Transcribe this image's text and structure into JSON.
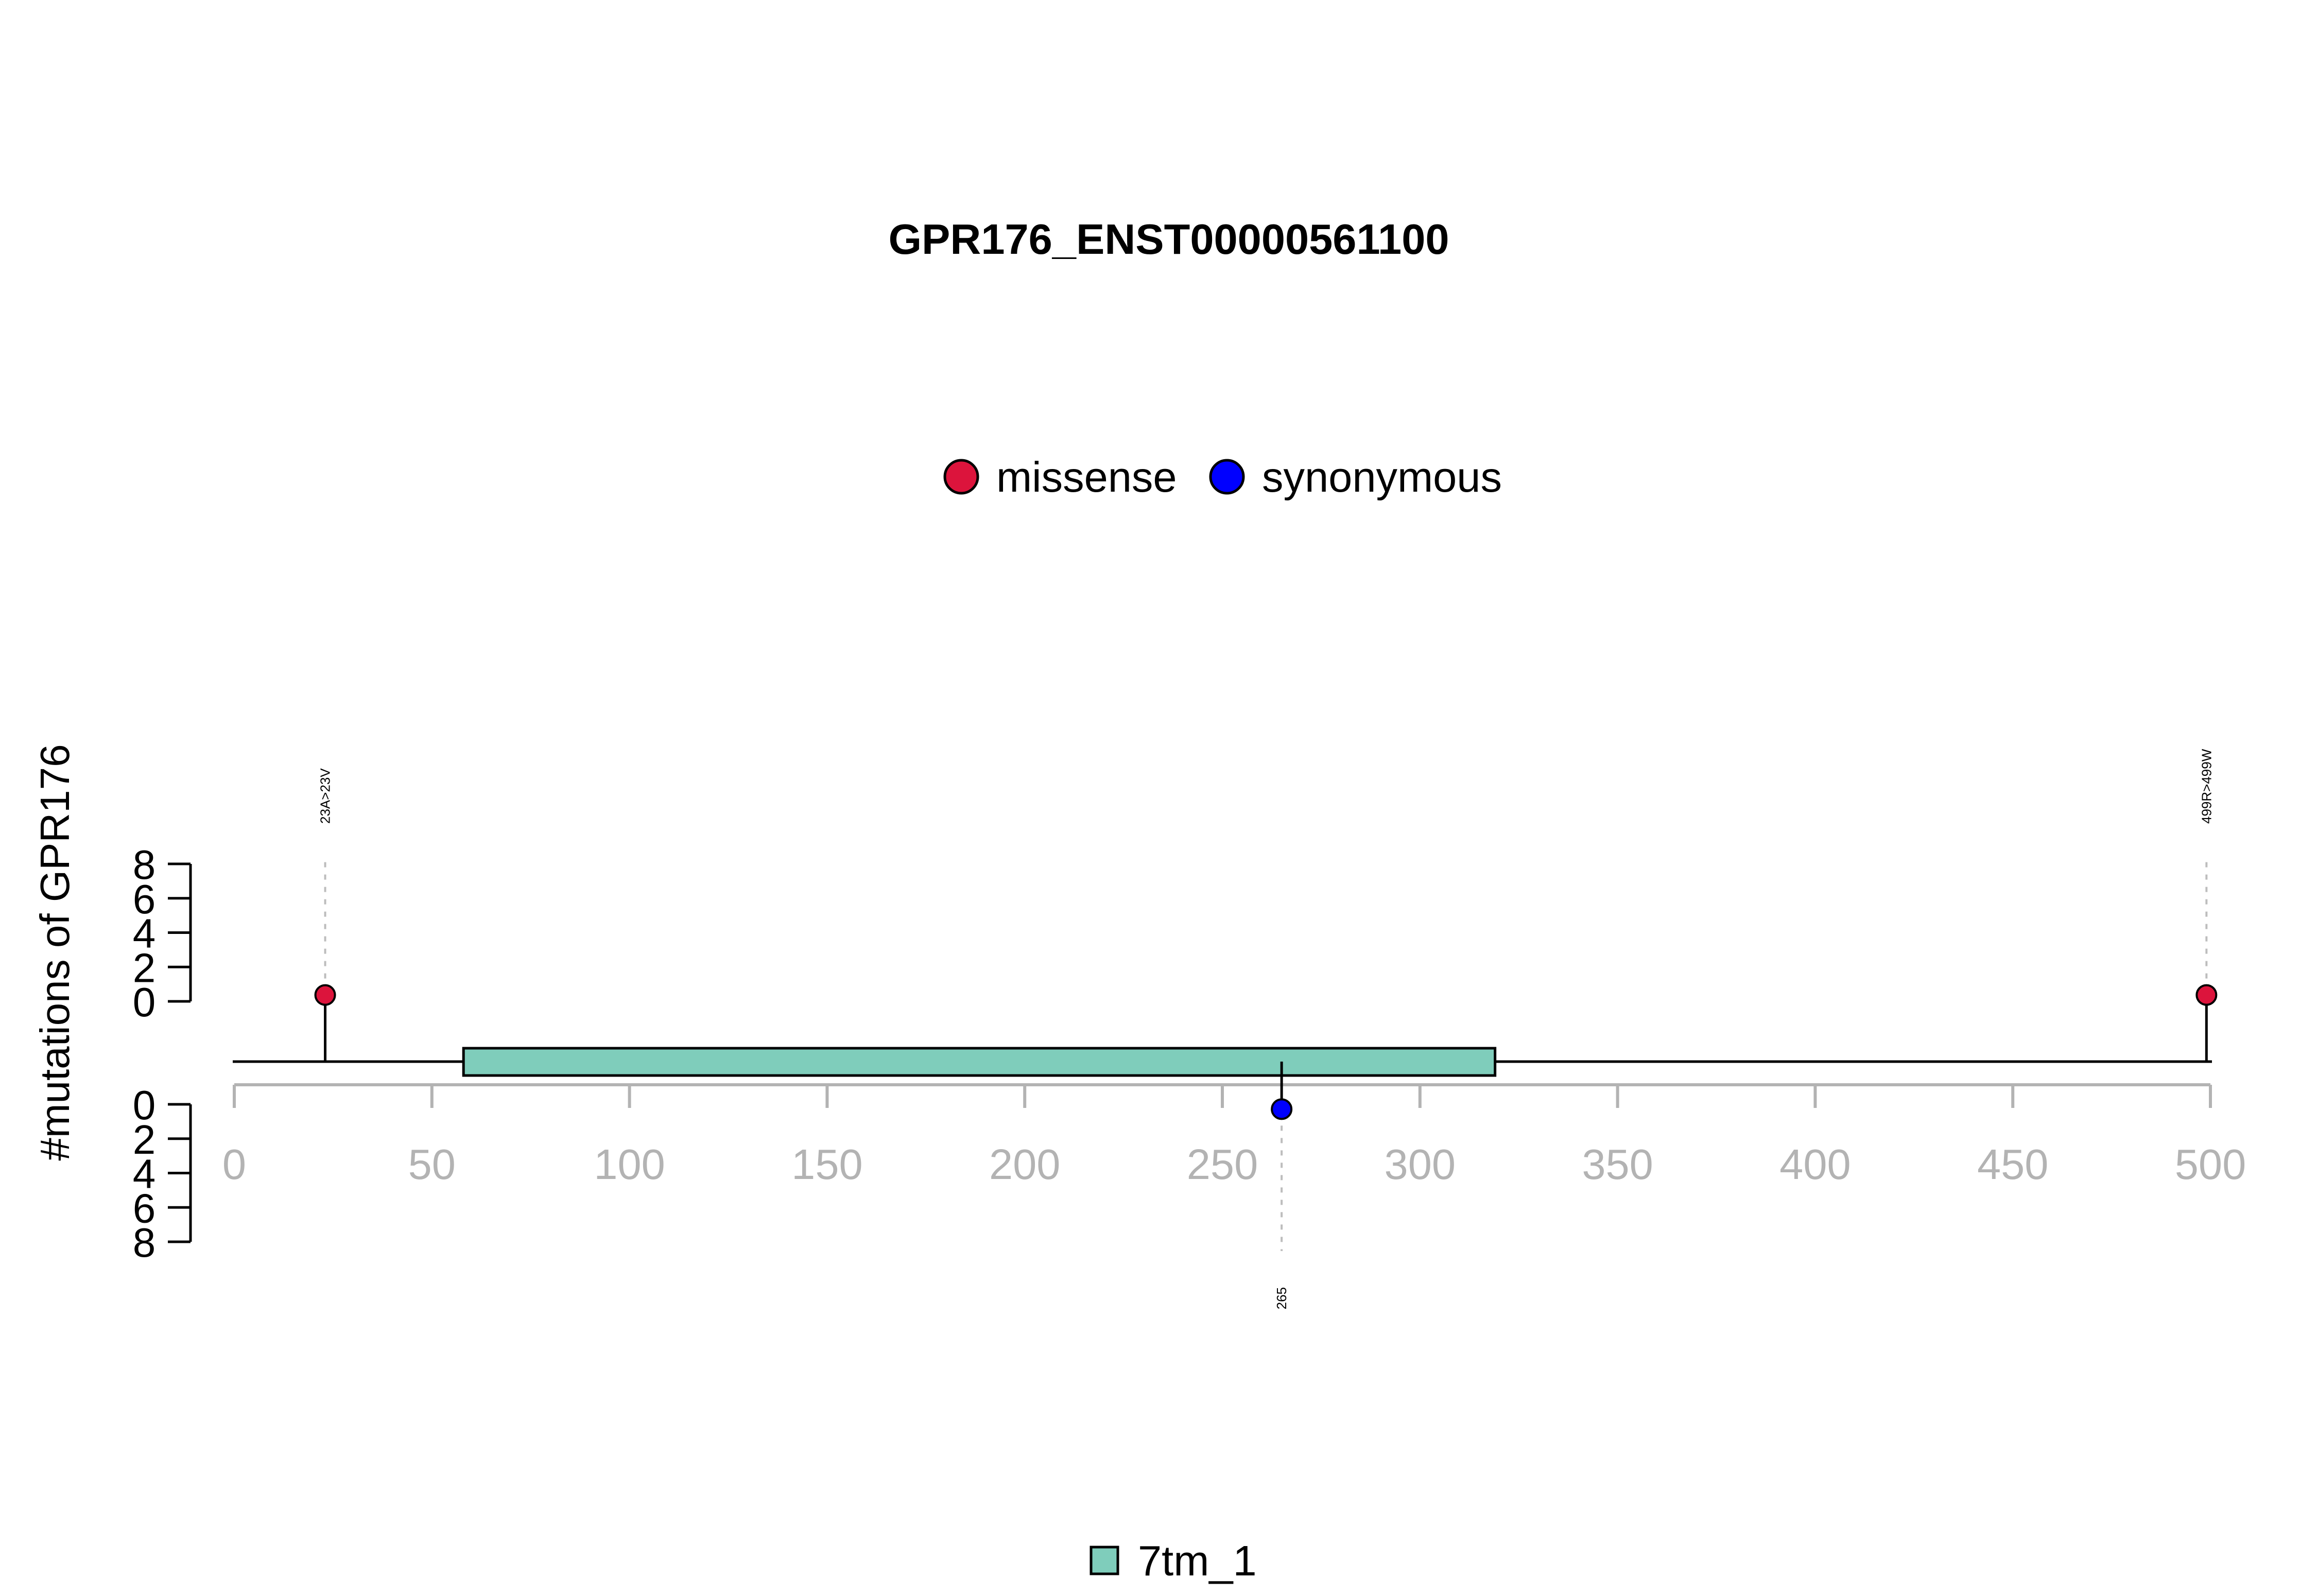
{
  "chart_data": {
    "type": "lollipop",
    "title": "GPR176_ENST00000561100",
    "ylabel": "#mutations of GPR176",
    "protein_length": 500,
    "xlim": [
      0,
      500
    ],
    "x_ticks": [
      "0",
      "50",
      "100",
      "150",
      "200",
      "250",
      "300",
      "350",
      "400",
      "450",
      "500"
    ],
    "y_ticks": [
      "0",
      "2",
      "4",
      "6",
      "8"
    ],
    "ylim": [
      0,
      8
    ],
    "legend_mutations": [
      {
        "name": "missense",
        "color": "#dc143c"
      },
      {
        "name": "synonymous",
        "color": "#0000ff"
      }
    ],
    "legend_domains": [
      {
        "name": "7tm_1",
        "color": "#7fcdbb"
      }
    ],
    "domains": [
      {
        "name": "7tm_1",
        "start": 58,
        "end": 319,
        "color": "#7fcdbb"
      }
    ],
    "mutations": [
      {
        "position": 23,
        "label": "23A>23V",
        "type": "missense",
        "count": 1,
        "side": "top"
      },
      {
        "position": 499,
        "label": "499R>499W",
        "type": "missense",
        "count": 1,
        "side": "top"
      },
      {
        "position": 265,
        "label": "265",
        "type": "synonymous",
        "count": 1,
        "side": "bottom"
      }
    ]
  }
}
